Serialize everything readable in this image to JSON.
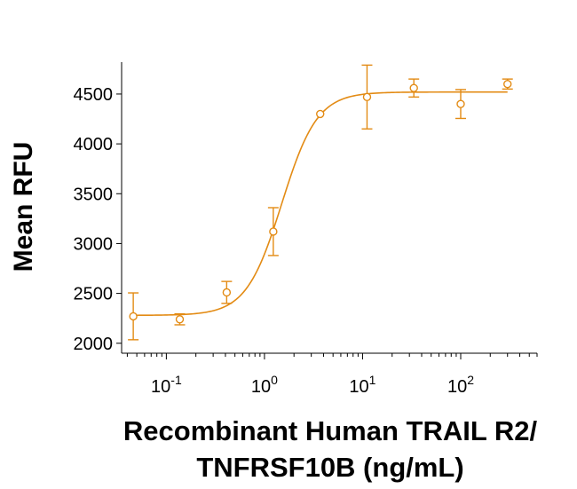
{
  "chart_data": {
    "type": "scatter",
    "title": "",
    "xlabel_lines": [
      "Recombinant Human TRAIL R2/",
      "TNFRSF10B (ng/mL)"
    ],
    "ylabel": "Mean RFU",
    "x_scale": "log",
    "xlim": [
      0.035,
      600
    ],
    "ylim": [
      1900,
      4820
    ],
    "y_ticks": [
      2000,
      2500,
      3000,
      3500,
      4000,
      4500
    ],
    "x_ticks": [
      {
        "value": 0.1,
        "base": "10",
        "exp": "-1"
      },
      {
        "value": 1,
        "base": "10",
        "exp": "0"
      },
      {
        "value": 10,
        "base": "10",
        "exp": "1"
      },
      {
        "value": 100,
        "base": "10",
        "exp": "2"
      }
    ],
    "grid": false,
    "color": "#E38B14",
    "series": [
      {
        "x": [
          0.046,
          0.137,
          0.412,
          1.23,
          3.7,
          11.1,
          33.3,
          100,
          300
        ],
        "y": [
          2270,
          2240,
          2510,
          3120,
          4300,
          4470,
          4560,
          4400,
          4600
        ],
        "error": [
          235,
          55,
          110,
          240,
          0,
          320,
          90,
          145,
          50
        ]
      }
    ],
    "fit_curve": {
      "model": "4PL",
      "bottom": 2280,
      "top": 4520,
      "ec50": 1.5,
      "hill": 2.4
    }
  }
}
